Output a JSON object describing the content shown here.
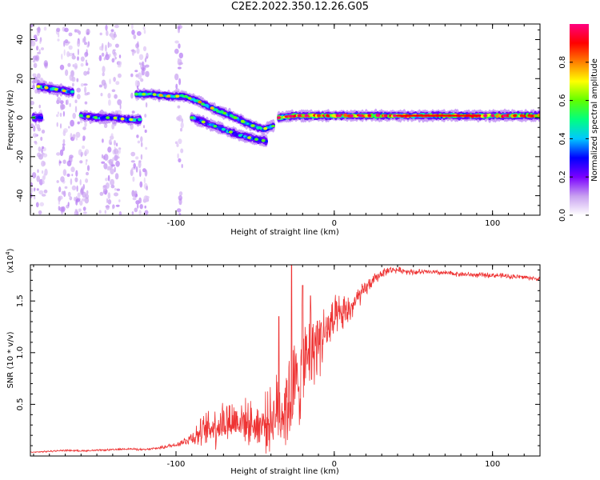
{
  "title": "C2E2.2022.350.12.26.G05",
  "chart_data": [
    {
      "type": "heatmap",
      "xlabel": "Height of straight line (km)",
      "ylabel": "Frequency (Hz)",
      "xlim": [
        -192,
        130
      ],
      "ylim": [
        -50,
        48
      ],
      "x_ticks": [
        -100,
        0,
        100
      ],
      "x_tick_labels": [
        "-100",
        "0",
        "100"
      ],
      "y_ticks": [
        -40,
        -20,
        0,
        20,
        40
      ],
      "y_tick_labels": [
        "-40",
        "-20",
        "0",
        "20",
        "40"
      ],
      "colorbar": {
        "label": "Normalized spectral amplitude",
        "range": [
          0.0,
          1.0
        ],
        "ticks": [
          0.0,
          0.2,
          0.4,
          0.6,
          0.8
        ],
        "tick_labels": [
          "0.0",
          "0.2",
          "0.4",
          "0.6",
          "0.8"
        ],
        "colormap": [
          "#ffffff",
          "#c8a0f0",
          "#7a00ff",
          "#0000ff",
          "#00c8ff",
          "#00ff80",
          "#60ff00",
          "#ffff00",
          "#ff8000",
          "#ff0000",
          "#ff0080"
        ]
      },
      "features": [
        {
          "x": [
            -187,
            -180,
            -172,
            -165
          ],
          "freq": [
            16,
            15,
            14,
            13
          ],
          "amplitude": 0.4
        },
        {
          "x": [
            -190,
            -185
          ],
          "freq": [
            0,
            0
          ],
          "amplitude": 0.3
        },
        {
          "x": [
            -160,
            -150,
            -140,
            -130,
            -122
          ],
          "freq": [
            1,
            0,
            0,
            -1,
            -1
          ],
          "amplitude": 0.35
        },
        {
          "x": [
            -125,
            -115,
            -105,
            -95,
            -85,
            -75,
            -65,
            -55,
            -45,
            -38
          ],
          "freq": [
            12,
            12,
            11,
            11,
            8,
            4,
            1,
            -3,
            -6,
            -4
          ],
          "amplitude": 0.45
        },
        {
          "x": [
            -90,
            -80,
            -70,
            -60,
            -50,
            -43
          ],
          "freq": [
            0,
            -3,
            -6,
            -9,
            -11,
            -12
          ],
          "amplitude": 0.35
        },
        {
          "x": [
            -35,
            -25,
            -15,
            -5,
            5,
            15,
            25,
            40,
            60,
            80,
            100,
            120,
            130
          ],
          "freq": [
            0,
            1,
            1,
            1,
            1,
            1,
            1,
            1,
            1,
            1,
            1,
            1,
            1
          ],
          "amplitude": 0.75
        }
      ]
    },
    {
      "type": "line",
      "xlabel": "Height of straight line (km)",
      "ylabel": "SNR (10 * v/v)",
      "scale_label": "(x10",
      "scale_exponent": "4",
      "xlim": [
        -192,
        130
      ],
      "ylim": [
        0,
        18500
      ],
      "x_ticks": [
        -100,
        0,
        100
      ],
      "x_tick_labels": [
        "-100",
        "0",
        "100"
      ],
      "y_ticks": [
        5000,
        10000,
        15000
      ],
      "y_tick_labels": [
        "0.5",
        "1.0",
        "1.5"
      ],
      "color": "#ee3333",
      "x": [
        -192,
        -180,
        -170,
        -160,
        -150,
        -140,
        -130,
        -120,
        -110,
        -100,
        -95,
        -90,
        -85,
        -80,
        -75,
        -70,
        -65,
        -60,
        -55,
        -50,
        -45,
        -40,
        -37,
        -35,
        -32,
        -30,
        -27,
        -25,
        -22,
        -20,
        -17,
        -15,
        -12,
        -10,
        -7,
        -5,
        -2,
        0,
        2,
        5,
        8,
        10,
        13,
        15,
        18,
        20,
        22,
        25,
        28,
        30,
        35,
        40,
        45,
        50,
        60,
        70,
        80,
        90,
        100,
        110,
        120,
        130
      ],
      "y": [
        350,
        450,
        550,
        500,
        550,
        600,
        700,
        600,
        800,
        1100,
        1400,
        1800,
        2200,
        2600,
        3000,
        3300,
        3400,
        3500,
        3300,
        3000,
        3100,
        3600,
        4000,
        4300,
        4600,
        5200,
        5600,
        6500,
        7500,
        8500,
        9300,
        10000,
        10800,
        11300,
        11700,
        12000,
        12600,
        13000,
        13300,
        13600,
        14000,
        14200,
        14800,
        15300,
        15800,
        16200,
        16600,
        17000,
        17400,
        17700,
        18000,
        18000,
        17900,
        17800,
        17800,
        17700,
        17600,
        17500,
        17500,
        17400,
        17300,
        17100
      ],
      "noise": [
        50,
        80,
        80,
        80,
        80,
        100,
        100,
        100,
        150,
        250,
        400,
        800,
        1300,
        1800,
        2200,
        2400,
        2300,
        2200,
        2000,
        2100,
        2600,
        3000,
        3500,
        4000,
        4500,
        4800,
        5000,
        5000,
        4800,
        4500,
        4200,
        4000,
        3800,
        3500,
        3200,
        2900,
        2600,
        2300,
        2100,
        1900,
        1700,
        1500,
        1300,
        1100,
        900,
        800,
        700,
        600,
        500,
        450,
        350,
        300,
        300,
        300,
        250,
        250,
        250,
        250,
        250,
        250,
        250,
        200
      ],
      "peaks": [
        {
          "x": -27,
          "y": 18500
        },
        {
          "x": -35,
          "y": 13500
        },
        {
          "x": -20,
          "y": 16500
        },
        {
          "x": -15,
          "y": 15500
        }
      ]
    }
  ]
}
